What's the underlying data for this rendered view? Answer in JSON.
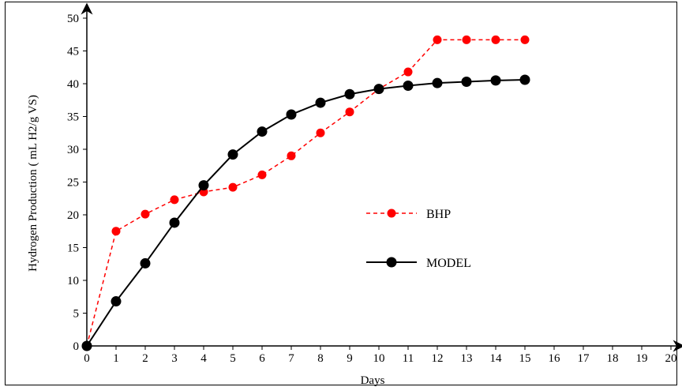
{
  "chart_data": {
    "type": "line",
    "title": "",
    "xlabel": "Days",
    "ylabel": "Hydrogen Production ( mL H2/g VS)",
    "xlim": [
      0,
      20
    ],
    "ylim": [
      0,
      50
    ],
    "x_ticks": [
      "0",
      "1",
      "2",
      "3",
      "4",
      "5",
      "6",
      "7",
      "8",
      "9",
      "10",
      "11",
      "12",
      "13",
      "14",
      "15",
      "16",
      "17",
      "18",
      "19",
      "20"
    ],
    "y_ticks": [
      "0",
      "5",
      "10",
      "15",
      "20",
      "25",
      "30",
      "35",
      "40",
      "45",
      "50"
    ],
    "grid": false,
    "legend_position": "center-right",
    "series": [
      {
        "name": "BHP",
        "color": "#ff0000",
        "line_style": "dashed",
        "marker": "circle",
        "x": [
          0,
          1,
          2,
          3,
          4,
          5,
          6,
          7,
          8,
          9,
          10,
          11,
          12,
          13,
          14,
          15
        ],
        "y": [
          0,
          17.5,
          20.1,
          22.3,
          23.5,
          24.2,
          26.1,
          29.0,
          32.5,
          35.7,
          39.2,
          41.8,
          46.7,
          46.7,
          46.7,
          46.7
        ]
      },
      {
        "name": "MODEL",
        "color": "#000000",
        "line_style": "solid",
        "marker": "circle",
        "x": [
          0,
          1,
          2,
          3,
          4,
          5,
          6,
          7,
          8,
          9,
          10,
          11,
          12,
          13,
          14,
          15
        ],
        "y": [
          0,
          6.8,
          12.6,
          18.8,
          24.5,
          29.2,
          32.7,
          35.3,
          37.1,
          38.4,
          39.2,
          39.7,
          40.1,
          40.3,
          40.5,
          40.6
        ]
      }
    ]
  }
}
